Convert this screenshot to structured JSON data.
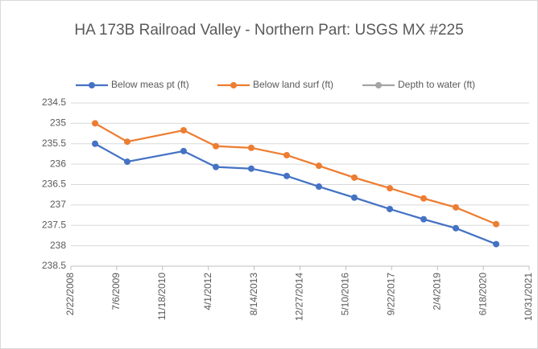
{
  "chart_data": {
    "type": "line",
    "title": "HA 173B Railroad Valley - Northern Part: USGS MX #225",
    "x": [
      "2008-11-12",
      "2009-10-29",
      "2011-07-06",
      "2012-06-22",
      "2013-07-13",
      "2014-08-04",
      "2015-07-21",
      "2016-08-11",
      "2017-09-02",
      "2018-09-06",
      "2019-08-23",
      "2020-11-05"
    ],
    "series": [
      {
        "name": "Below meas pt (ft)",
        "color": "#4472c4",
        "values": [
          235.5,
          235.94,
          235.68,
          236.07,
          236.11,
          236.29,
          236.55,
          236.82,
          237.1,
          237.35,
          237.57,
          237.96
        ]
      },
      {
        "name": "Below land surf (ft)",
        "color": "#ed7d31",
        "values": [
          235.0,
          235.45,
          235.17,
          235.56,
          235.6,
          235.78,
          236.04,
          236.33,
          236.59,
          236.84,
          237.06,
          237.47
        ]
      },
      {
        "name": "Depth to water (ft)",
        "color": "#a5a5a5",
        "values": [
          null,
          null,
          null,
          null,
          null,
          null,
          null,
          null,
          null,
          null,
          null,
          null
        ]
      }
    ],
    "xlim": [
      "2008-02-22",
      "2021-10-31"
    ],
    "xticks": [
      {
        "value": "2008-02-22",
        "label": "2/22/2008"
      },
      {
        "value": "2009-07-06",
        "label": "7/6/2009"
      },
      {
        "value": "2010-11-18",
        "label": "11/18/2010"
      },
      {
        "value": "2012-04-01",
        "label": "4/1/2012"
      },
      {
        "value": "2013-08-14",
        "label": "8/14/2013"
      },
      {
        "value": "2014-12-27",
        "label": "12/27/2014"
      },
      {
        "value": "2016-05-10",
        "label": "5/10/2016"
      },
      {
        "value": "2017-09-22",
        "label": "9/22/2017"
      },
      {
        "value": "2019-02-04",
        "label": "2/4/2019"
      },
      {
        "value": "2020-06-18",
        "label": "6/18/2020"
      },
      {
        "value": "2021-10-31",
        "label": "10/31/2021"
      }
    ],
    "ylim": [
      234.5,
      238.5
    ],
    "yticks": [
      234.5,
      235,
      235.5,
      236,
      236.5,
      237,
      237.5,
      238,
      238.5
    ],
    "y_reversed": true,
    "grid": true,
    "legend": "top"
  }
}
